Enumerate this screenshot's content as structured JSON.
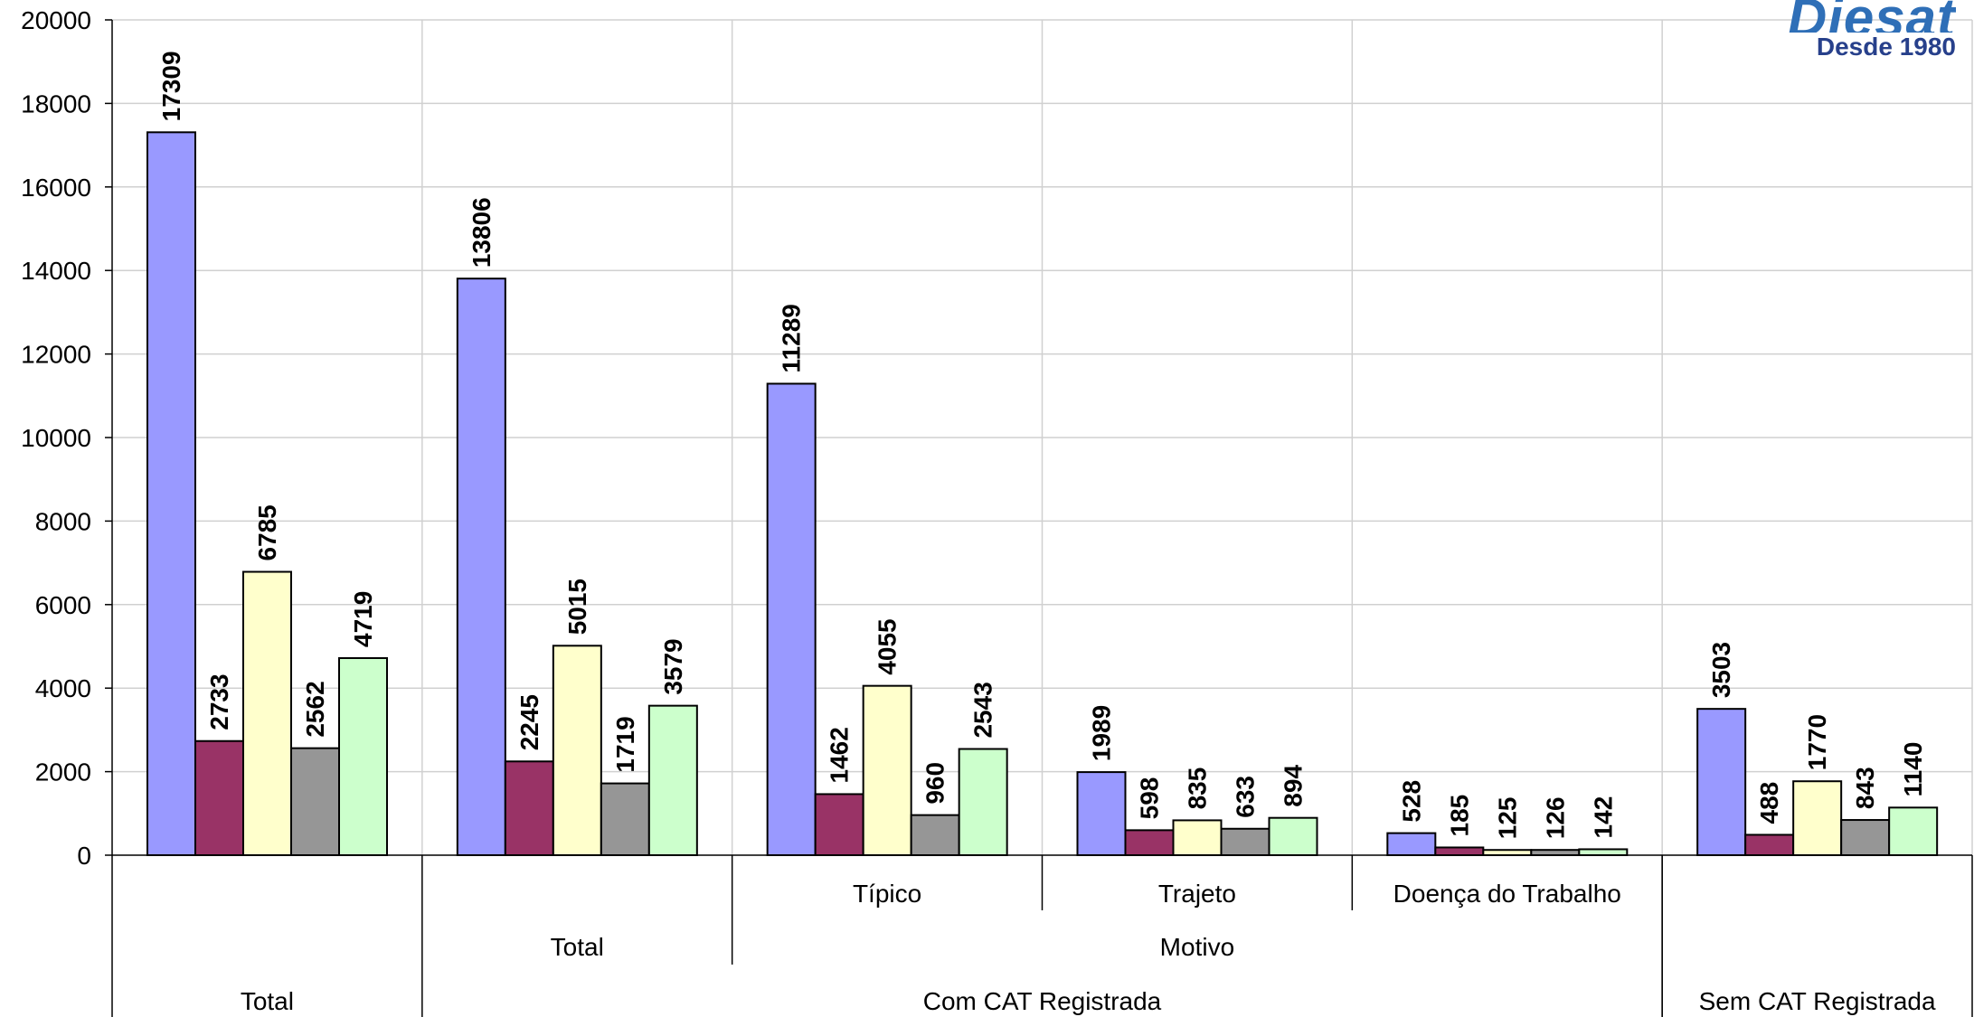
{
  "chart_data": {
    "type": "bar",
    "ylim": [
      0,
      20000
    ],
    "yticks": [
      0,
      2000,
      4000,
      6000,
      8000,
      10000,
      12000,
      14000,
      16000,
      18000,
      20000
    ],
    "grid": true,
    "series_colors": [
      "#9999ff",
      "#993366",
      "#ffffcc",
      "#969696",
      "#ccffcc"
    ],
    "groups": [
      {
        "values": [
          17309,
          2733,
          6785,
          2562,
          4719
        ]
      },
      {
        "values": [
          13806,
          2245,
          5015,
          1719,
          3579
        ]
      },
      {
        "values": [
          11289,
          1462,
          4055,
          960,
          2543
        ]
      },
      {
        "values": [
          1989,
          598,
          835,
          633,
          894
        ]
      },
      {
        "values": [
          528,
          185,
          125,
          126,
          142
        ]
      },
      {
        "values": [
          3503,
          488,
          1770,
          843,
          1140
        ]
      }
    ],
    "category_labels": {
      "level1": [
        "Típico",
        "Trajeto",
        "Doença do Trabalho"
      ],
      "level2": [
        "Total",
        "Motivo"
      ],
      "level3": [
        "Total",
        "Com CAT Registrada",
        "Sem CAT Registrada"
      ]
    }
  },
  "logo": {
    "word": "Diesat",
    "tagline": "Desde 1980"
  }
}
